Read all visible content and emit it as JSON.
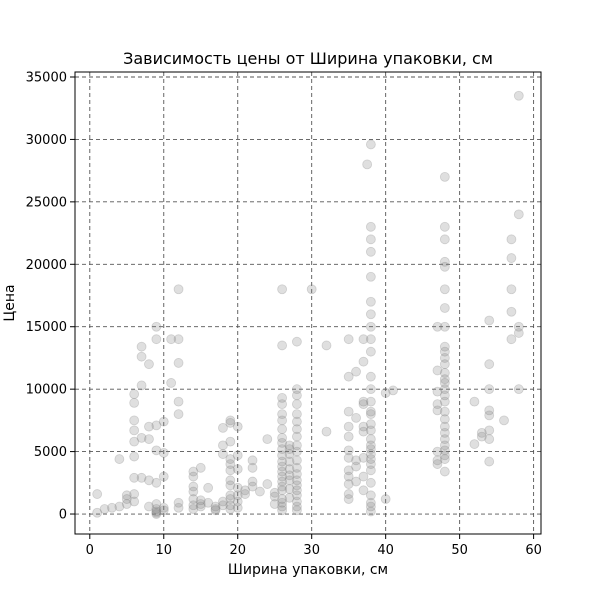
{
  "chart_data": {
    "type": "scatter",
    "title": "Зависимость цены от Ширина упаковки, см",
    "xlabel": "Ширина упаковки, см",
    "ylabel": "Цена",
    "xlim": [
      -2,
      61
    ],
    "ylim": [
      -1600,
      35400
    ],
    "xticks": [
      0,
      10,
      20,
      30,
      40,
      50,
      60
    ],
    "yticks": [
      0,
      5000,
      10000,
      15000,
      20000,
      25000,
      30000,
      35000
    ],
    "grid": true,
    "grid_style": "dashed",
    "legend": "none",
    "point_color": "#808080",
    "point_alpha": 0.25,
    "points": [
      [
        1,
        100
      ],
      [
        1,
        1600
      ],
      [
        2,
        400
      ],
      [
        3,
        500
      ],
      [
        4,
        4400
      ],
      [
        4,
        600
      ],
      [
        5,
        800
      ],
      [
        5,
        1200
      ],
      [
        5,
        1500
      ],
      [
        6,
        1600
      ],
      [
        6,
        1000
      ],
      [
        6,
        2900
      ],
      [
        6,
        4600
      ],
      [
        6,
        5800
      ],
      [
        6,
        6700
      ],
      [
        6,
        7500
      ],
      [
        6,
        8900
      ],
      [
        6,
        9600
      ],
      [
        7,
        10300
      ],
      [
        7,
        12600
      ],
      [
        7,
        13400
      ],
      [
        7,
        2900
      ],
      [
        7,
        6100
      ],
      [
        8,
        7000
      ],
      [
        8,
        6000
      ],
      [
        8,
        12000
      ],
      [
        8,
        2700
      ],
      [
        8,
        600
      ],
      [
        9,
        15000
      ],
      [
        9,
        14000
      ],
      [
        9,
        7100
      ],
      [
        9,
        5100
      ],
      [
        9,
        2500
      ],
      [
        9,
        800
      ],
      [
        9,
        400
      ],
      [
        9,
        200
      ],
      [
        9,
        100
      ],
      [
        9,
        0
      ],
      [
        10,
        7400
      ],
      [
        10,
        4900
      ],
      [
        10,
        3000
      ],
      [
        10,
        500
      ],
      [
        10,
        300
      ],
      [
        11,
        14000
      ],
      [
        11,
        10500
      ],
      [
        12,
        8000
      ],
      [
        12,
        9000
      ],
      [
        12,
        12100
      ],
      [
        12,
        14000
      ],
      [
        12,
        18000
      ],
      [
        12,
        900
      ],
      [
        12,
        500
      ],
      [
        14,
        3400
      ],
      [
        14,
        3000
      ],
      [
        14,
        2200
      ],
      [
        14,
        1800
      ],
      [
        14,
        1200
      ],
      [
        14,
        700
      ],
      [
        14,
        400
      ],
      [
        15,
        3700
      ],
      [
        15,
        1100
      ],
      [
        15,
        800
      ],
      [
        15,
        600
      ],
      [
        16,
        2100
      ],
      [
        16,
        900
      ],
      [
        17,
        600
      ],
      [
        17,
        400
      ],
      [
        17,
        300
      ],
      [
        18,
        700
      ],
      [
        18,
        1000
      ],
      [
        18,
        4800
      ],
      [
        18,
        5500
      ],
      [
        18,
        6900
      ],
      [
        19,
        7500
      ],
      [
        19,
        7300
      ],
      [
        19,
        5800
      ],
      [
        19,
        4400
      ],
      [
        19,
        4000
      ],
      [
        19,
        3500
      ],
      [
        19,
        2700
      ],
      [
        19,
        2300
      ],
      [
        19,
        1500
      ],
      [
        19,
        1200
      ],
      [
        19,
        700
      ],
      [
        19,
        400
      ],
      [
        20,
        7000
      ],
      [
        20,
        4700
      ],
      [
        20,
        3600
      ],
      [
        20,
        2100
      ],
      [
        20,
        1500
      ],
      [
        20,
        1000
      ],
      [
        20,
        500
      ],
      [
        21,
        1900
      ],
      [
        21,
        1600
      ],
      [
        22,
        2200
      ],
      [
        22,
        2600
      ],
      [
        22,
        3700
      ],
      [
        22,
        4300
      ],
      [
        23,
        1800
      ],
      [
        24,
        6000
      ],
      [
        24,
        2400
      ],
      [
        25,
        1700
      ],
      [
        25,
        1400
      ],
      [
        25,
        800
      ],
      [
        26,
        1900
      ],
      [
        26,
        2200
      ],
      [
        26,
        2600
      ],
      [
        26,
        3000
      ],
      [
        26,
        3400
      ],
      [
        26,
        3800
      ],
      [
        26,
        4200
      ],
      [
        26,
        4700
      ],
      [
        26,
        5200
      ],
      [
        26,
        5700
      ],
      [
        26,
        6100
      ],
      [
        26,
        6800
      ],
      [
        26,
        7500
      ],
      [
        26,
        8000
      ],
      [
        26,
        8800
      ],
      [
        26,
        9300
      ],
      [
        26,
        13500
      ],
      [
        26,
        18000
      ],
      [
        26,
        1200
      ],
      [
        26,
        900
      ],
      [
        26,
        600
      ],
      [
        26,
        300
      ],
      [
        27,
        1300
      ],
      [
        27,
        2000
      ],
      [
        27,
        2700
      ],
      [
        27,
        3100
      ],
      [
        27,
        3600
      ],
      [
        27,
        4200
      ],
      [
        27,
        4800
      ],
      [
        27,
        5200
      ],
      [
        27,
        5500
      ],
      [
        28,
        1000
      ],
      [
        28,
        1500
      ],
      [
        28,
        1900
      ],
      [
        28,
        2300
      ],
      [
        28,
        2700
      ],
      [
        28,
        3200
      ],
      [
        28,
        3700
      ],
      [
        28,
        4300
      ],
      [
        28,
        5000
      ],
      [
        28,
        5500
      ],
      [
        28,
        6200
      ],
      [
        28,
        6800
      ],
      [
        28,
        7400
      ],
      [
        28,
        8000
      ],
      [
        28,
        8800
      ],
      [
        28,
        9500
      ],
      [
        28,
        10000
      ],
      [
        28,
        13800
      ],
      [
        28,
        600
      ],
      [
        28,
        300
      ],
      [
        30,
        18000
      ],
      [
        32,
        13500
      ],
      [
        32,
        6600
      ],
      [
        35,
        1200
      ],
      [
        35,
        1600
      ],
      [
        35,
        2400
      ],
      [
        35,
        3000
      ],
      [
        35,
        3500
      ],
      [
        35,
        4500
      ],
      [
        35,
        5100
      ],
      [
        35,
        6200
      ],
      [
        35,
        7000
      ],
      [
        35,
        8200
      ],
      [
        35,
        11000
      ],
      [
        35,
        14000
      ],
      [
        36,
        2600
      ],
      [
        36,
        3800
      ],
      [
        36,
        4300
      ],
      [
        36,
        7700
      ],
      [
        36,
        11400
      ],
      [
        37,
        12200
      ],
      [
        37,
        14000
      ],
      [
        37,
        9000
      ],
      [
        37,
        8800
      ],
      [
        37,
        7000
      ],
      [
        37,
        6600
      ],
      [
        37,
        4500
      ],
      [
        37,
        3000
      ],
      [
        37,
        1900
      ],
      [
        38,
        29600
      ],
      [
        37.5,
        28000
      ],
      [
        38,
        23000
      ],
      [
        38,
        22000
      ],
      [
        38,
        21000
      ],
      [
        38,
        19000
      ],
      [
        38,
        17000
      ],
      [
        38,
        16000
      ],
      [
        38,
        15000
      ],
      [
        38,
        14000
      ],
      [
        38,
        13000
      ],
      [
        38,
        11000
      ],
      [
        38,
        10000
      ],
      [
        38,
        9000
      ],
      [
        38,
        8200
      ],
      [
        38,
        8000
      ],
      [
        38,
        7200
      ],
      [
        38,
        6700
      ],
      [
        38,
        6000
      ],
      [
        38,
        5500
      ],
      [
        38,
        5200
      ],
      [
        38,
        4800
      ],
      [
        38,
        4400
      ],
      [
        38,
        4000
      ],
      [
        38,
        3500
      ],
      [
        38,
        2500
      ],
      [
        38,
        1500
      ],
      [
        38,
        900
      ],
      [
        38,
        600
      ],
      [
        38,
        200
      ],
      [
        40,
        9700
      ],
      [
        40,
        1200
      ],
      [
        41,
        9900
      ],
      [
        47,
        4000
      ],
      [
        47,
        4300
      ],
      [
        47,
        5000
      ],
      [
        47,
        8800
      ],
      [
        47,
        8300
      ],
      [
        47,
        9800
      ],
      [
        47,
        11500
      ],
      [
        47,
        15000
      ],
      [
        48,
        27000
      ],
      [
        48,
        23000
      ],
      [
        48,
        22000
      ],
      [
        48,
        20200
      ],
      [
        48,
        19800
      ],
      [
        48,
        18000
      ],
      [
        48,
        16500
      ],
      [
        48,
        15000
      ],
      [
        48,
        13400
      ],
      [
        48,
        13000
      ],
      [
        48,
        12500
      ],
      [
        48,
        12000
      ],
      [
        48,
        11300
      ],
      [
        48,
        10800
      ],
      [
        48,
        10500
      ],
      [
        48,
        10000
      ],
      [
        48,
        9500
      ],
      [
        48,
        9000
      ],
      [
        48,
        8200
      ],
      [
        48,
        7600
      ],
      [
        48,
        7000
      ],
      [
        48,
        6500
      ],
      [
        48,
        6000
      ],
      [
        48,
        5500
      ],
      [
        48,
        5100
      ],
      [
        48,
        4700
      ],
      [
        48,
        4400
      ],
      [
        48,
        3400
      ],
      [
        52,
        9000
      ],
      [
        52,
        5600
      ],
      [
        53,
        6500
      ],
      [
        53,
        6200
      ],
      [
        54,
        15500
      ],
      [
        54,
        12000
      ],
      [
        54,
        10000
      ],
      [
        54,
        8300
      ],
      [
        54,
        7900
      ],
      [
        54,
        6700
      ],
      [
        54,
        6000
      ],
      [
        54,
        4200
      ],
      [
        56,
        7500
      ],
      [
        57,
        22000
      ],
      [
        57,
        20500
      ],
      [
        57,
        18000
      ],
      [
        57,
        16200
      ],
      [
        57,
        14000
      ],
      [
        58,
        24000
      ],
      [
        58,
        15000
      ],
      [
        58,
        14500
      ],
      [
        58,
        10000
      ],
      [
        58,
        33500
      ]
    ]
  }
}
